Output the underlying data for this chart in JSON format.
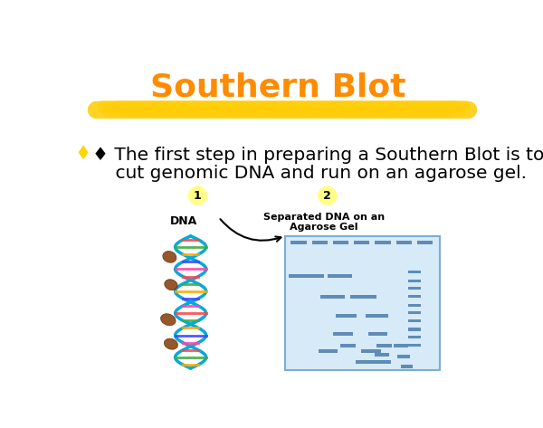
{
  "title": "Southern Blot",
  "title_color": "#FF8C00",
  "title_fontsize": 26,
  "bg_color": "#FFFFFF",
  "highlight_color": "#FFCC00",
  "bullet_color": "#FFD700",
  "bullet_text_line1": "♦ The first step in preparing a Southern Blot is to",
  "bullet_text_line2": "    cut genomic DNA and run on an agarose gel.",
  "bullet_fontsize": 14.5,
  "step1_label": "1",
  "step2_label": "2",
  "step_circle_color": "#FFFF88",
  "dna_label": "DNA",
  "gel_label_line1": "Separated DNA on an",
  "gel_label_line2": "Agarose Gel",
  "gel_bg": "#D6EAF8",
  "gel_border": "#7BAFD4",
  "band_color": "#4A7AAD",
  "helix_color": "#00AADD",
  "blob_color": "#8B4513"
}
